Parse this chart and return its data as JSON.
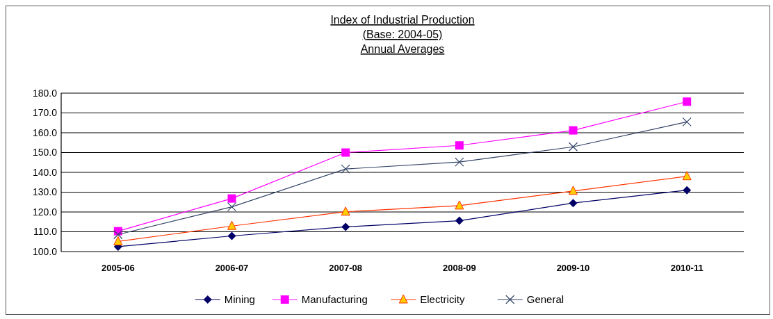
{
  "chart_data": {
    "type": "line",
    "title": "Index of Industrial Production\n(Base: 2004-05)\nAnnual Averages",
    "categories": [
      "2005-06",
      "2006-07",
      "2007-08",
      "2008-09",
      "2009-10",
      "2010-11"
    ],
    "series": [
      {
        "name": "Mining",
        "color": "#000066",
        "marker": "diamond",
        "values": [
          102.5,
          107.9,
          112.5,
          115.6,
          124.5,
          131.0
        ]
      },
      {
        "name": "Manufacturing",
        "color": "#ff00ff",
        "marker": "square",
        "values": [
          110.3,
          126.8,
          150.0,
          153.6,
          161.2,
          175.7
        ]
      },
      {
        "name": "Electricity",
        "color": "#ff3300",
        "marker": "triangle",
        "values": [
          105.1,
          112.9,
          120.1,
          123.2,
          130.6,
          138.0
        ]
      },
      {
        "name": "General",
        "color": "#334466",
        "marker": "cross",
        "values": [
          108.6,
          122.6,
          141.7,
          145.2,
          152.9,
          165.5
        ]
      }
    ],
    "ylim": [
      100,
      180
    ],
    "yticks": [
      {
        "value": 100,
        "label": "100.0"
      },
      {
        "value": 110,
        "label": "110.0"
      },
      {
        "value": 120,
        "label": "120.0"
      },
      {
        "value": 130,
        "label": "130.0"
      },
      {
        "value": 140,
        "label": "140.0"
      },
      {
        "value": 150,
        "label": "150.0"
      },
      {
        "value": 160,
        "label": "160.0"
      },
      {
        "value": 170,
        "label": "170.0"
      },
      {
        "value": 180,
        "label": "180.0"
      }
    ],
    "grid": "y",
    "legend": "bottom"
  }
}
